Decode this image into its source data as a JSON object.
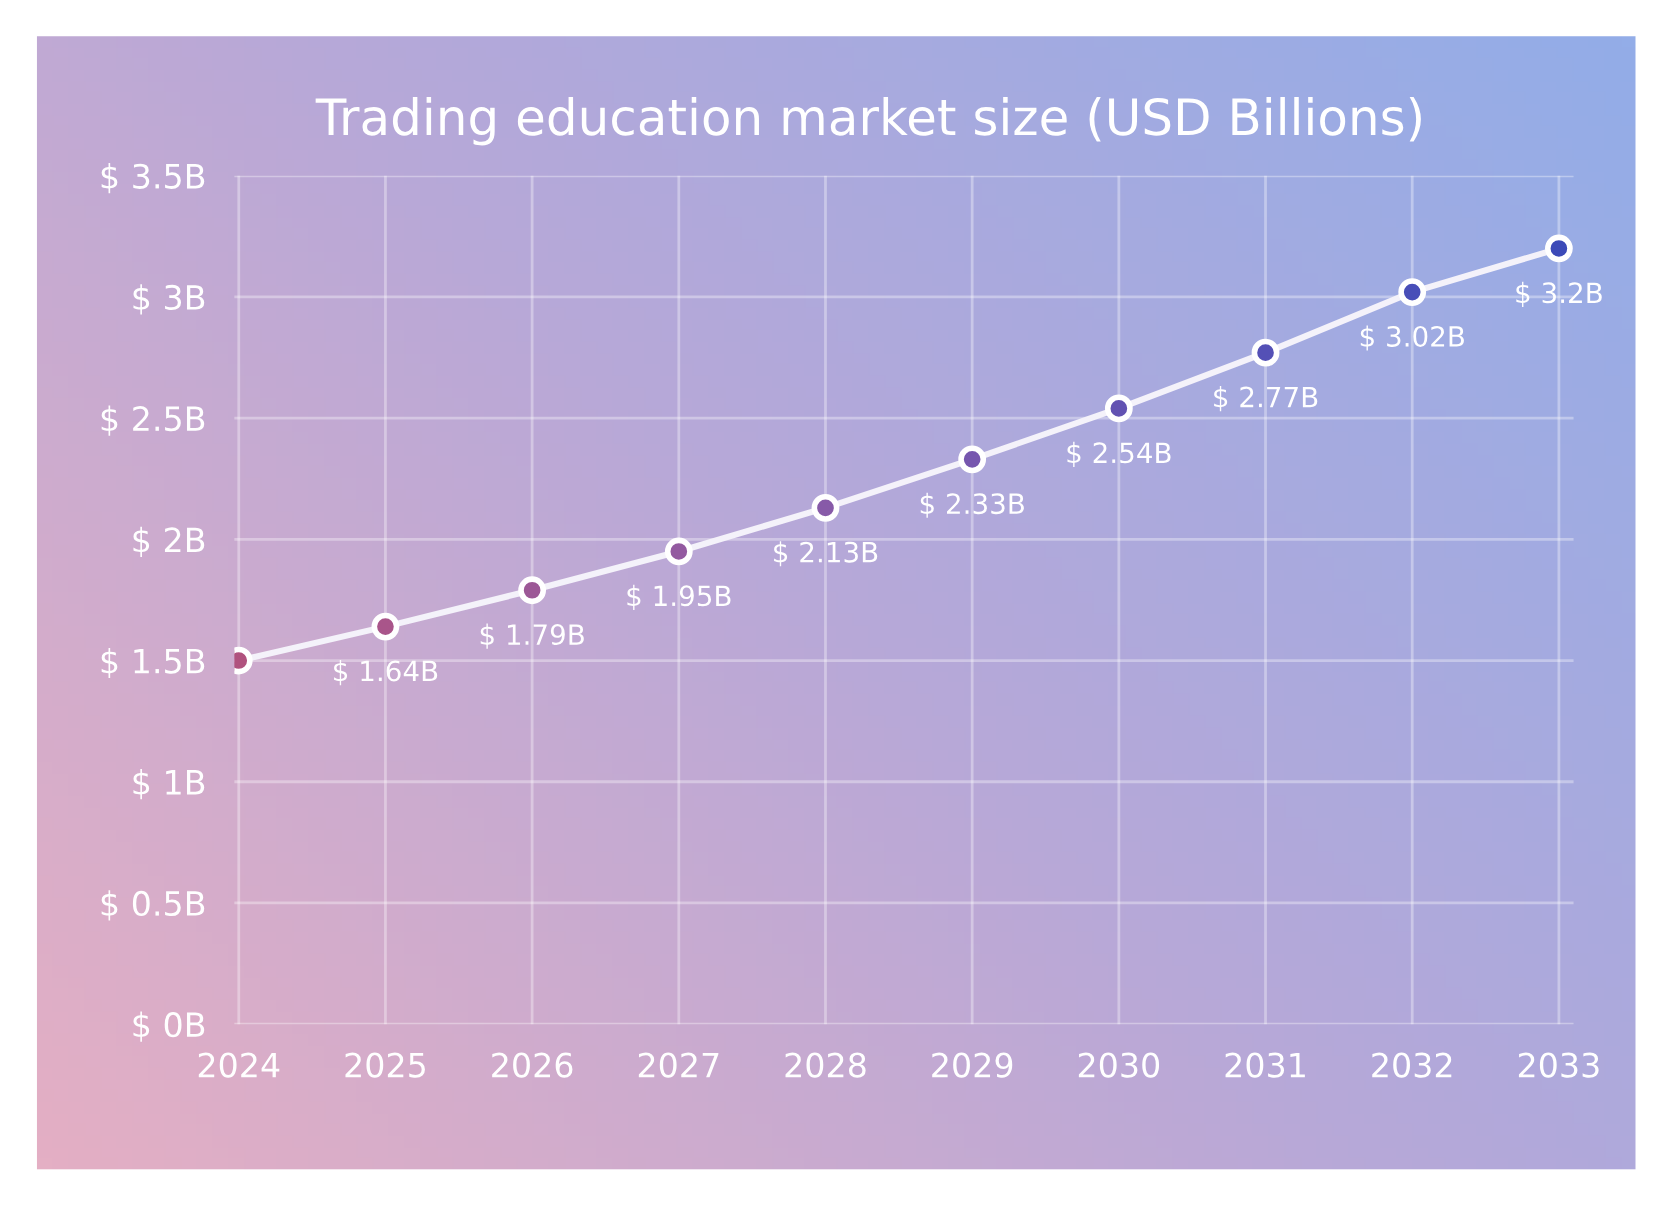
{
  "chart_data": {
    "type": "line",
    "title": "Trading education market size (USD Billions)",
    "categories": [
      "2024",
      "2025",
      "2026",
      "2027",
      "2028",
      "2029",
      "2030",
      "2031",
      "2032",
      "2033"
    ],
    "series": [
      {
        "color": "#f4f2fa",
        "values": [
          1.5,
          1.64,
          1.79,
          1.95,
          2.13,
          2.33,
          2.54,
          2.77,
          3.02,
          3.2
        ],
        "colors": [
          "#b0527e",
          "#a9558a",
          "#9c5896",
          "#935aa0",
          "#875aa8",
          "#7656ae",
          "#6252b2",
          "#5450b6",
          "#484eb8",
          "#3c4ab8"
        ],
        "value_labels": [
          null,
          "$ 1.64B",
          "$ 1.79B",
          "$ 1.95B",
          "$ 2.13B",
          "$ 2.33B",
          "$ 2.54B",
          "$ 2.77B",
          "$ 3.02B",
          "$ 3.2B"
        ]
      }
    ],
    "ylim": [
      0,
      3.5
    ],
    "yticks": [
      {
        "value": 0,
        "label": "$ 0B"
      },
      {
        "value": 0.5,
        "label": "$ 0.5B"
      },
      {
        "value": 1,
        "label": "$ 1B"
      },
      {
        "value": 1.5,
        "label": "$ 1.5B"
      },
      {
        "value": 2,
        "label": "$ 2B"
      },
      {
        "value": 2.5,
        "label": "$ 2.5B"
      },
      {
        "value": 3,
        "label": "$ 3B"
      },
      {
        "value": 3.5,
        "label": "$ 3.5B"
      }
    ],
    "grid": true,
    "marker": "circle",
    "line_style": "solid"
  }
}
